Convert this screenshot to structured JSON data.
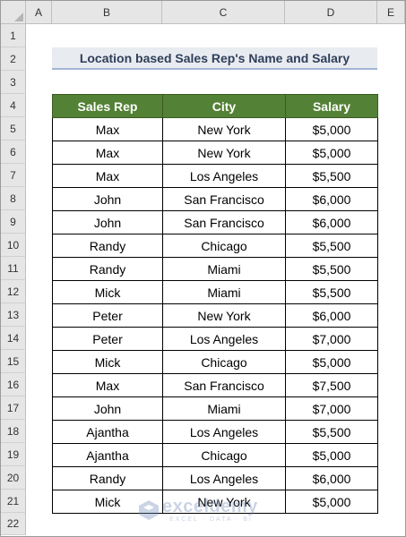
{
  "columns": [
    "A",
    "B",
    "C",
    "D",
    "E"
  ],
  "rows": [
    "1",
    "2",
    "3",
    "4",
    "5",
    "6",
    "7",
    "8",
    "9",
    "10",
    "11",
    "12",
    "13",
    "14",
    "15",
    "16",
    "17",
    "18",
    "19",
    "20",
    "21",
    "22"
  ],
  "title": "Location based Sales Rep's Name and Salary",
  "table": {
    "headers": [
      "Sales Rep",
      "City",
      "Salary"
    ],
    "rows": [
      [
        "Max",
        "New York",
        "$5,000"
      ],
      [
        "Max",
        "New York",
        "$5,000"
      ],
      [
        "Max",
        "Los Angeles",
        "$5,500"
      ],
      [
        "John",
        "San Francisco",
        "$6,000"
      ],
      [
        "John",
        "San Francisco",
        "$6,000"
      ],
      [
        "Randy",
        "Chicago",
        "$5,500"
      ],
      [
        "Randy",
        "Miami",
        "$5,500"
      ],
      [
        "Mick",
        "Miami",
        "$5,500"
      ],
      [
        "Peter",
        "New York",
        "$6,000"
      ],
      [
        "Peter",
        "Los Angeles",
        "$7,000"
      ],
      [
        "Mick",
        "Chicago",
        "$5,000"
      ],
      [
        "Max",
        "San Francisco",
        "$7,500"
      ],
      [
        "John",
        "Miami",
        "$7,000"
      ],
      [
        "Ajantha",
        "Los Angeles",
        "$5,500"
      ],
      [
        "Ajantha",
        "Chicago",
        "$5,000"
      ],
      [
        "Randy",
        "Los Angeles",
        "$6,000"
      ],
      [
        "Mick",
        "New York",
        "$5,000"
      ]
    ]
  },
  "watermark": {
    "name": "exceldemy",
    "tagline": "EXCEL · DATA · BI"
  },
  "colors": {
    "header_fill": "#538135",
    "title_fill": "#e8ebf0",
    "title_border": "#a3b5d6",
    "grid_header_fill": "#e6e6e6"
  }
}
